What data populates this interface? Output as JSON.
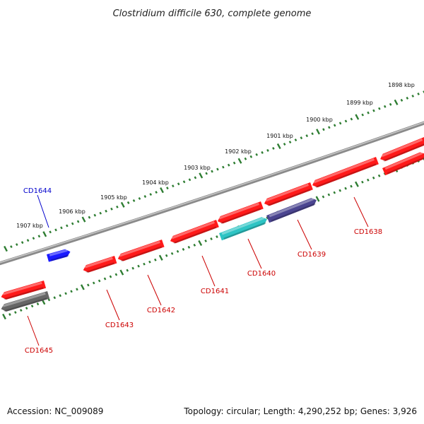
{
  "title": "Clostridium difficile 630, complete genome",
  "footer": {
    "accession": "Accession: NC_009089",
    "summary": "Topology: circular; Length: 4,290,252 bp; Genes: 3,926"
  },
  "colors": {
    "backbone": "#8a8a8a",
    "tick": "#2e7d32",
    "label_red": "#cc0000",
    "label_blue": "#0000cc"
  },
  "scale_ticks": [
    {
      "label": "1898 kbp"
    },
    {
      "label": "1899 kbp"
    },
    {
      "label": "1900 kbp"
    },
    {
      "label": "1901 kbp"
    },
    {
      "label": "1902 kbp"
    },
    {
      "label": "1903 kbp"
    },
    {
      "label": "1904 kbp"
    },
    {
      "label": "1905 kbp"
    },
    {
      "label": "1906 kbp"
    },
    {
      "label": "1907 kbp"
    }
  ],
  "genes": [
    {
      "id": "CD1644",
      "label": "CD1644",
      "label_color": "#0000cc",
      "color": "#1a1aff",
      "strand": "outer"
    },
    {
      "id": "CD1645",
      "label": "CD1645",
      "label_color": "#cc0000",
      "color": "#666666",
      "strand": "inner"
    },
    {
      "id": "CD1643",
      "label": "CD1643",
      "label_color": "#cc0000",
      "color": "#ff1a1a",
      "strand": "inner"
    },
    {
      "id": "CD1642",
      "label": "CD1642",
      "label_color": "#cc0000",
      "color": "#ff1a1a",
      "strand": "inner"
    },
    {
      "id": "CD1641",
      "label": "CD1641",
      "label_color": "#cc0000",
      "color": "#ff1a1a",
      "strand": "inner"
    },
    {
      "id": "CD1640",
      "label": "CD1640",
      "label_color": "#cc0000",
      "color": "#2ec4c4",
      "strand": "inner"
    },
    {
      "id": "CD1639",
      "label": "CD1639",
      "label_color": "#cc0000",
      "color": "#4b4590",
      "strand": "inner"
    },
    {
      "id": "CD1638",
      "label": "CD1638",
      "label_color": "#cc0000",
      "color": "#ff1a1a",
      "strand": "inner"
    }
  ]
}
